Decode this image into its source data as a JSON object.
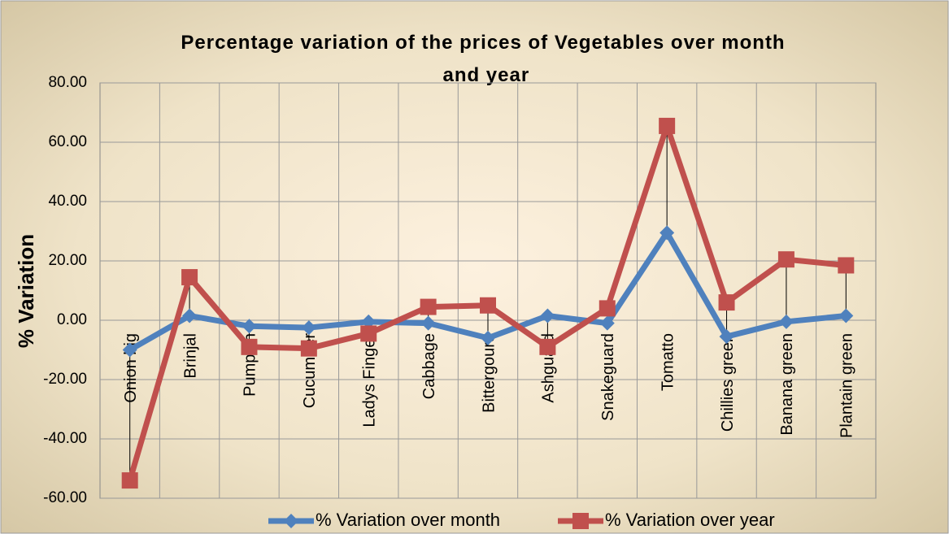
{
  "chart_data": {
    "type": "line",
    "title": "Percentage variation of the prices of Vegetables over month and year",
    "y_label": "% Variation",
    "categories": [
      "Onion big",
      "Brinjal",
      "Pumpkin",
      "Cucumber",
      "Ladys Finger",
      "Cabbage",
      "Bittergourd",
      "Ashguard",
      "Snakeguard",
      "Tomatto",
      "Chillies green",
      "Banana green",
      "Plantain green"
    ],
    "series": [
      {
        "name": "% Variation over month",
        "color": "#4f81bd",
        "values": [
          -10,
          1.5,
          -2,
          -2.5,
          -0.5,
          -1,
          -6,
          1.5,
          -1,
          29.5,
          -5.5,
          -0.5,
          1.5
        ]
      },
      {
        "name": "% Variation over year",
        "color": "#c0504d",
        "values": [
          -54,
          14.5,
          -9,
          -9.5,
          -4.5,
          4.5,
          5,
          -9,
          4,
          65.5,
          6,
          20.5,
          18.5
        ]
      }
    ],
    "ylim": [
      -60,
      80
    ],
    "yticks": [
      {
        "value": -60,
        "label": "-60.00"
      },
      {
        "value": -40,
        "label": "-40.00"
      },
      {
        "value": -20,
        "label": "-20.00"
      },
      {
        "value": 0,
        "label": "0.00"
      },
      {
        "value": 20,
        "label": "20.00"
      },
      {
        "value": 40,
        "label": "40.00"
      },
      {
        "value": 60,
        "label": "60.00"
      },
      {
        "value": 80,
        "label": "80.00"
      }
    ],
    "grid": true,
    "legend": "bottom"
  }
}
